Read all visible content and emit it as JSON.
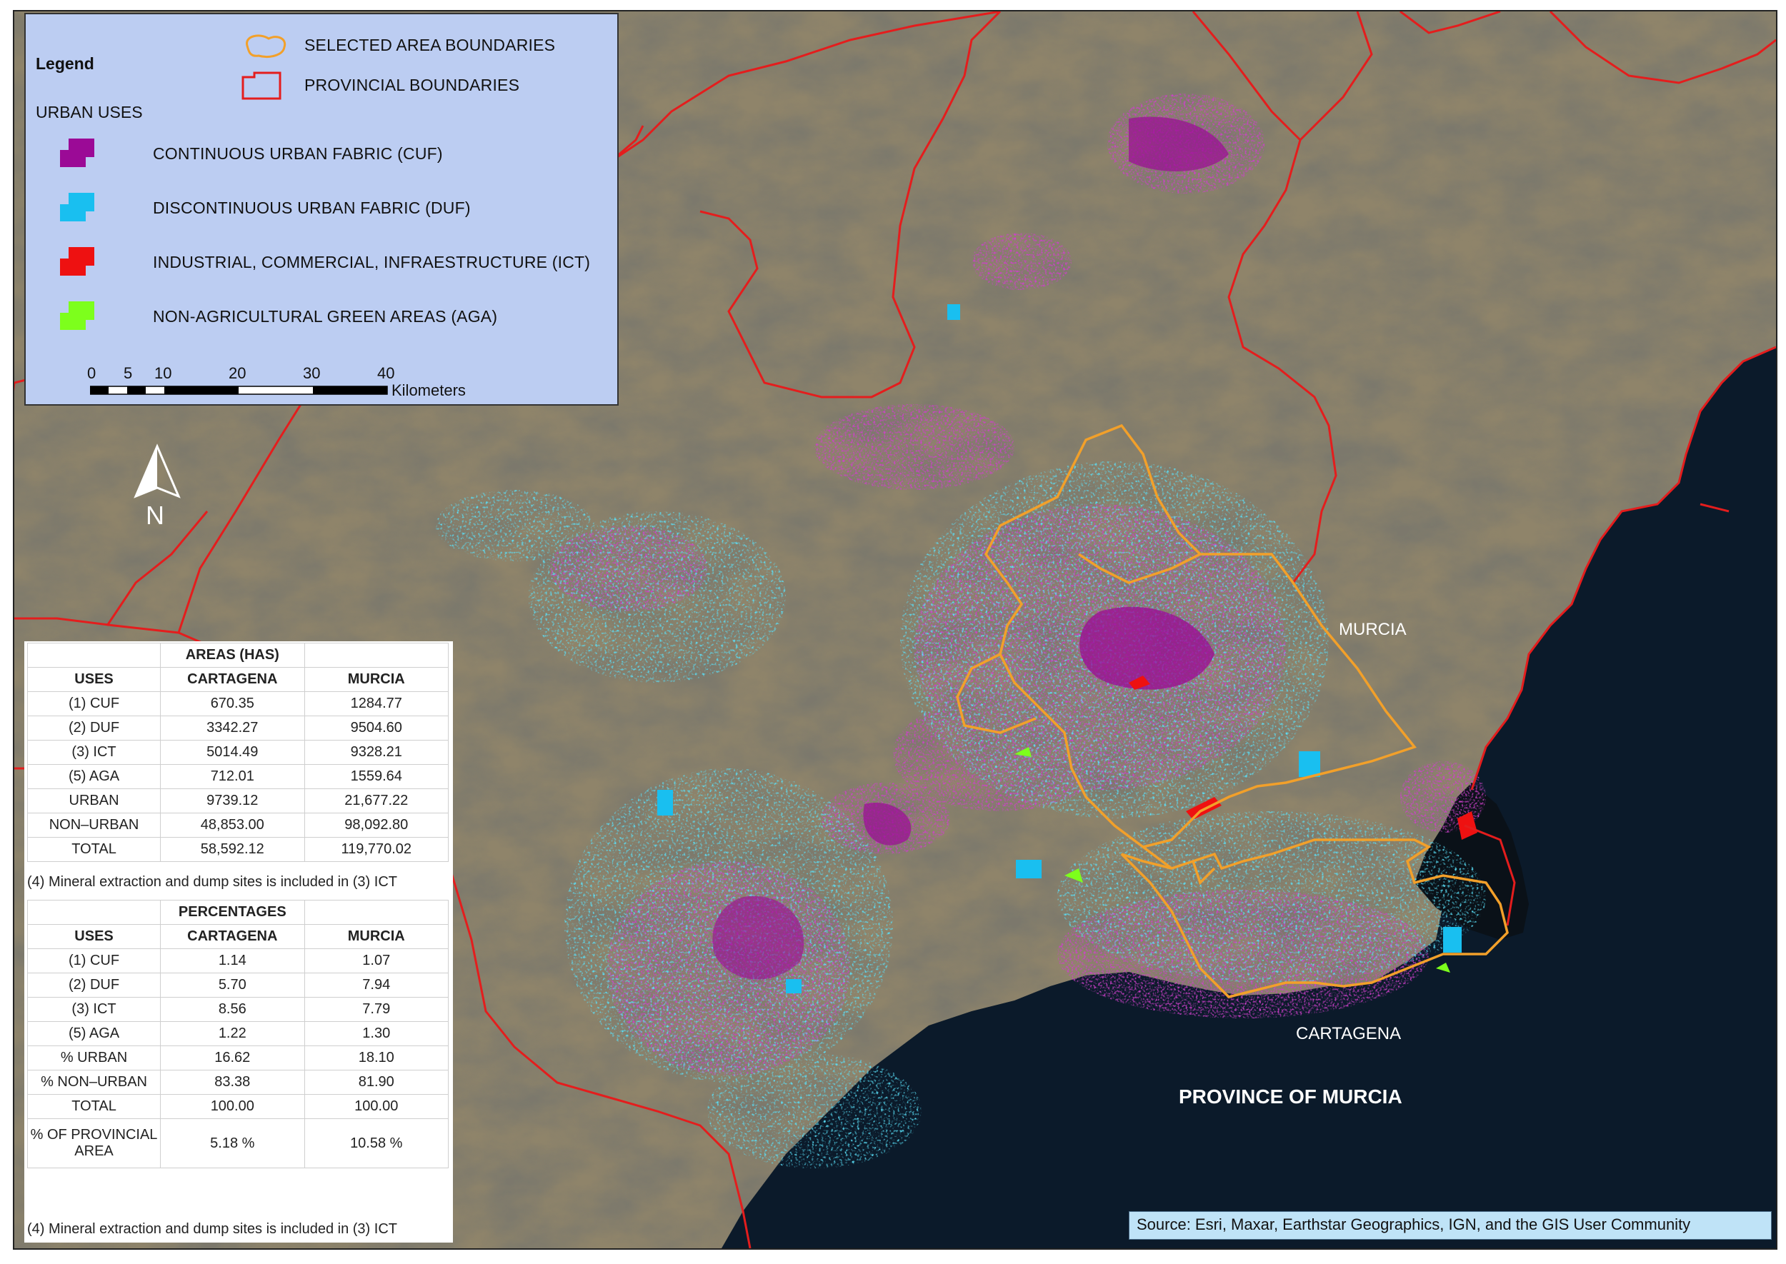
{
  "legend": {
    "title": "Legend",
    "selected_area_label": "SELECTED AREA BOUNDARIES",
    "provincial_label": "PROVINCIAL BOUNDARIES",
    "subtitle": "URBAN USES",
    "items": [
      {
        "label": "CONTINUOUS URBAN FABRIC (CUF)",
        "color": "#9b0a96"
      },
      {
        "label": "DISCONTINUOUS URBAN FABRIC (DUF)",
        "color": "#19bff0"
      },
      {
        "label": "INDUSTRIAL, COMMERCIAL, INFRAESTRUCTURE (ICT)",
        "color": "#ee1111"
      },
      {
        "label": "NON-AGRICULTURAL GREEN AREAS (AGA)",
        "color": "#7dff1c"
      }
    ],
    "scale_ticks": [
      "0",
      "5",
      "10",
      "20",
      "30",
      "40"
    ],
    "scale_unit": "Kilometers"
  },
  "north_label": "N",
  "places": {
    "murcia": "MURCIA",
    "cartagena": "CARTAGENA",
    "province": "PROVINCE OF MURCIA"
  },
  "source": "Source: Esri, Maxar, Earthstar Geographics, IGN, and the GIS User Community",
  "colors": {
    "sea": "#0b1a2a",
    "land": "#8a7f66",
    "boundary_province": "#e41d1d",
    "boundary_selected": "#f2a02a",
    "legend_bg": "#bccdf2"
  },
  "table_areas": {
    "title": "AREAS (HAS)",
    "headers": [
      "USES",
      "CARTAGENA",
      "MURCIA"
    ],
    "rows": [
      [
        "(1) CUF",
        "670.35",
        "1284.77"
      ],
      [
        "(2) DUF",
        "3342.27",
        "9504.60"
      ],
      [
        "(3) ICT",
        "5014.49",
        "9328.21"
      ],
      [
        "(5) AGA",
        "712.01",
        "1559.64"
      ],
      [
        "URBAN",
        "9739.12",
        "21,677.22"
      ],
      [
        "NON–URBAN",
        "48,853.00",
        "98,092.80"
      ],
      [
        "TOTAL",
        "58,592.12",
        "119,770.02"
      ]
    ],
    "note": "(4) Mineral extraction and dump sites is included in (3) ICT"
  },
  "table_percentages": {
    "title": "PERCENTAGES",
    "headers": [
      "USES",
      "CARTAGENA",
      "MURCIA"
    ],
    "rows": [
      [
        "(1) CUF",
        "1.14",
        "1.07"
      ],
      [
        "(2) DUF",
        "5.70",
        "7.94"
      ],
      [
        "(3) ICT",
        "8.56",
        "7.79"
      ],
      [
        "(5) AGA",
        "1.22",
        "1.30"
      ],
      [
        "% URBAN",
        "16.62",
        "18.10"
      ],
      [
        "% NON–URBAN",
        "83.38",
        "81.90"
      ],
      [
        "TOTAL",
        "100.00",
        "100.00"
      ],
      [
        "% OF PROVINCIAL AREA",
        "5.18 %",
        "10.58 %"
      ]
    ],
    "note": "(4) Mineral extraction and dump sites is included in (3) ICT"
  }
}
